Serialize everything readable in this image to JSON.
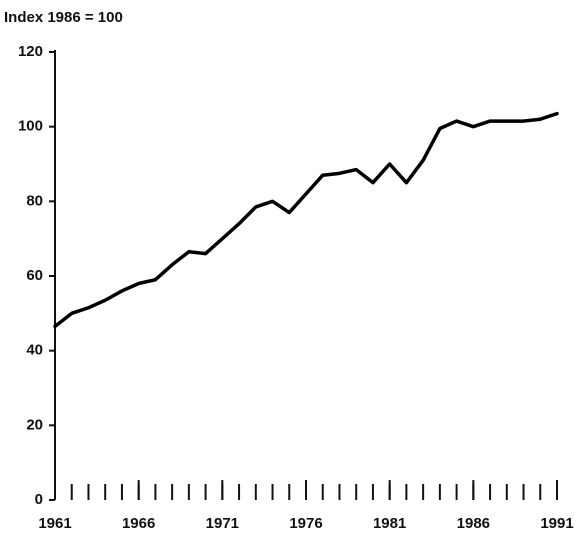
{
  "chart_data": {
    "type": "line",
    "y_axis_label": "Index 1986 = 100",
    "x": [
      1961,
      1962,
      1963,
      1964,
      1965,
      1966,
      1967,
      1968,
      1969,
      1970,
      1971,
      1972,
      1973,
      1974,
      1975,
      1976,
      1977,
      1978,
      1979,
      1980,
      1981,
      1982,
      1983,
      1984,
      1985,
      1986,
      1987,
      1988,
      1989,
      1990,
      1991
    ],
    "values": [
      46.5,
      50,
      51.5,
      53.5,
      56,
      58,
      59,
      63,
      66.5,
      66,
      70,
      74,
      78.5,
      80,
      77,
      82,
      87,
      87.5,
      88.5,
      85,
      90,
      85,
      91,
      99.5,
      101.5,
      100,
      101.5,
      101.5,
      101.5,
      102,
      103.5
    ],
    "color": "#000000",
    "xlim": [
      1961,
      1991
    ],
    "xticks": [
      1961,
      1966,
      1971,
      1976,
      1981,
      1986,
      1991
    ],
    "x_minor_ticks": [
      1961,
      1962,
      1963,
      1964,
      1965,
      1966,
      1967,
      1968,
      1969,
      1970,
      1971,
      1972,
      1973,
      1974,
      1975,
      1976,
      1977,
      1978,
      1979,
      1980,
      1981,
      1982,
      1983,
      1984,
      1985,
      1986,
      1987,
      1988,
      1989,
      1990,
      1991
    ],
    "ylim": [
      0,
      120
    ],
    "yticks": [
      0,
      20,
      40,
      60,
      80,
      100,
      120
    ],
    "grid": false
  }
}
